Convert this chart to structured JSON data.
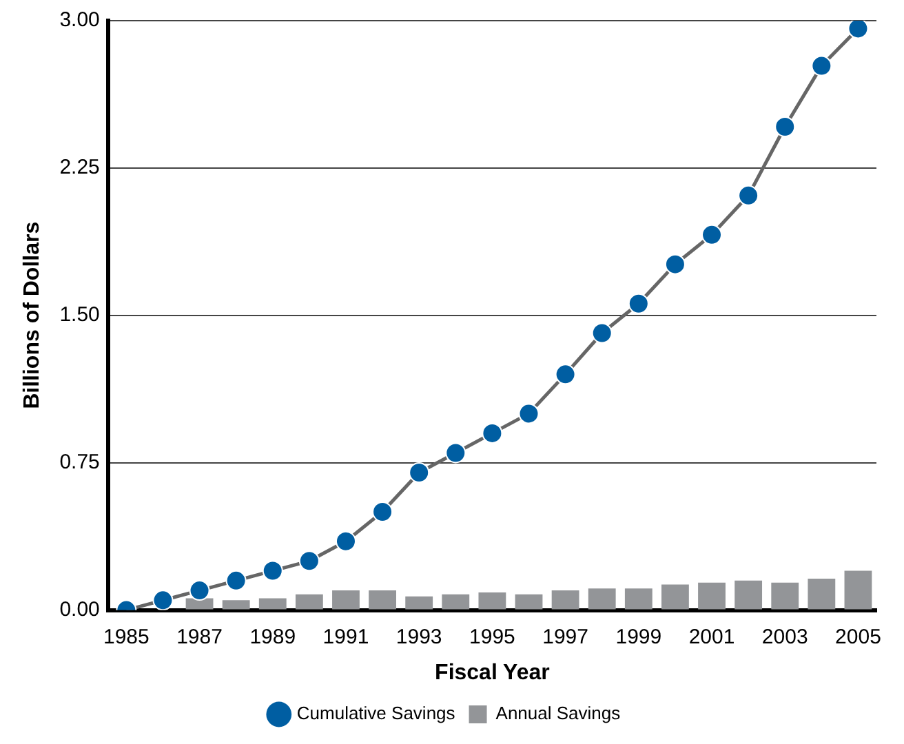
{
  "chart_data": {
    "type": "bar",
    "xlabel": "Fiscal Year",
    "ylabel": "Billions of Dollars",
    "categories": [
      "1985",
      null,
      "1987",
      null,
      "1989",
      null,
      "1991",
      null,
      "1993",
      null,
      "1995",
      null,
      "1997",
      null,
      "1999",
      null,
      "2001",
      null,
      "2003",
      null,
      "2005"
    ],
    "series": [
      {
        "name": "Cumulative Savings",
        "type": "line",
        "color": "#005ea2",
        "values": [
          0,
          0.05,
          0.1,
          0.15,
          0.2,
          0.25,
          0.35,
          0.5,
          0.7,
          0.8,
          0.9,
          1.0,
          1.2,
          1.41,
          1.56,
          1.76,
          1.91,
          2.11,
          2.46,
          2.77,
          2.96
        ]
      },
      {
        "name": "Annual Savings",
        "color": "#939598",
        "values": [
          null,
          null,
          0.06,
          0.05,
          0.06,
          0.08,
          0.1,
          0.1,
          0.07,
          0.08,
          0.09,
          0.08,
          0.1,
          0.11,
          0.11,
          0.13,
          0.14,
          0.15,
          0.14,
          0.16,
          0.2
        ]
      }
    ],
    "ylim": [
      0,
      3
    ],
    "yticks": [
      {
        "value": 0,
        "label": "0.00"
      },
      {
        "value": 0.75,
        "label": "0.75"
      },
      {
        "value": 1.5,
        "label": "1.50"
      },
      {
        "value": 2.25,
        "label": "2.25"
      },
      {
        "value": 3,
        "label": "3.00"
      }
    ],
    "grid": "y",
    "legend": "bottom",
    "marker": "circle",
    "line_style": "solid"
  }
}
